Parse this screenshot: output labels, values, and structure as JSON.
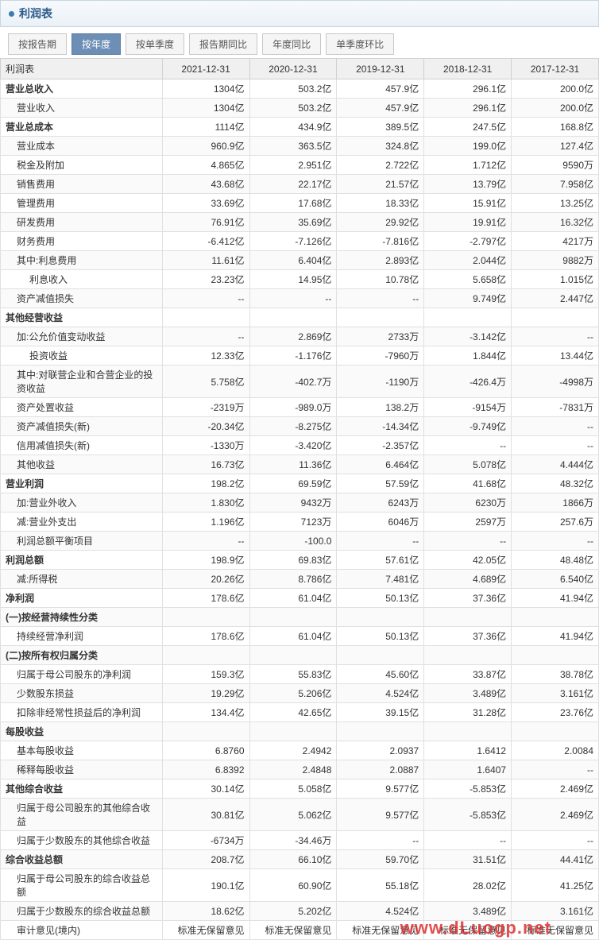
{
  "title": "利润表",
  "tabs": [
    "按报告期",
    "按年度",
    "按单季度",
    "报告期同比",
    "年度同比",
    "单季度环比"
  ],
  "active_tab": 1,
  "header": [
    "利润表",
    "2021-12-31",
    "2020-12-31",
    "2019-12-31",
    "2018-12-31",
    "2017-12-31"
  ],
  "watermark": "www.dLuogp.net",
  "colors": {
    "title_bg1": "#f7fafd",
    "title_bg2": "#eaf1f6",
    "title_border": "#c8d6e2",
    "bullet": "#3a7ab5",
    "title_text": "#2a5a8a",
    "th_bg": "#f0f0f0"
  },
  "rows": [
    {
      "l": 0,
      "b": 1,
      "c": [
        "营业总收入",
        "1304亿",
        "503.2亿",
        "457.9亿",
        "296.1亿",
        "200.0亿"
      ]
    },
    {
      "l": 1,
      "c": [
        "营业收入",
        "1304亿",
        "503.2亿",
        "457.9亿",
        "296.1亿",
        "200.0亿"
      ]
    },
    {
      "l": 0,
      "b": 1,
      "c": [
        "营业总成本",
        "1114亿",
        "434.9亿",
        "389.5亿",
        "247.5亿",
        "168.8亿"
      ]
    },
    {
      "l": 1,
      "c": [
        "营业成本",
        "960.9亿",
        "363.5亿",
        "324.8亿",
        "199.0亿",
        "127.4亿"
      ]
    },
    {
      "l": 1,
      "c": [
        "税金及附加",
        "4.865亿",
        "2.951亿",
        "2.722亿",
        "1.712亿",
        "9590万"
      ]
    },
    {
      "l": 1,
      "c": [
        "销售费用",
        "43.68亿",
        "22.17亿",
        "21.57亿",
        "13.79亿",
        "7.958亿"
      ]
    },
    {
      "l": 1,
      "c": [
        "管理费用",
        "33.69亿",
        "17.68亿",
        "18.33亿",
        "15.91亿",
        "13.25亿"
      ]
    },
    {
      "l": 1,
      "c": [
        "研发费用",
        "76.91亿",
        "35.69亿",
        "29.92亿",
        "19.91亿",
        "16.32亿"
      ]
    },
    {
      "l": 1,
      "c": [
        "财务费用",
        "-6.412亿",
        "-7.126亿",
        "-7.816亿",
        "-2.797亿",
        "4217万"
      ]
    },
    {
      "l": 1,
      "c": [
        "其中:利息费用",
        "11.61亿",
        "6.404亿",
        "2.893亿",
        "2.044亿",
        "9882万"
      ]
    },
    {
      "l": 2,
      "c": [
        "利息收入",
        "23.23亿",
        "14.95亿",
        "10.78亿",
        "5.658亿",
        "1.015亿"
      ]
    },
    {
      "l": 1,
      "c": [
        "资产减值损失",
        "--",
        "--",
        "--",
        "9.749亿",
        "2.447亿"
      ]
    },
    {
      "l": 0,
      "b": 1,
      "c": [
        "其他经营收益",
        "",
        "",
        "",
        "",
        ""
      ]
    },
    {
      "l": 1,
      "c": [
        "加:公允价值变动收益",
        "--",
        "2.869亿",
        "2733万",
        "-3.142亿",
        "--"
      ]
    },
    {
      "l": 2,
      "c": [
        "投资收益",
        "12.33亿",
        "-1.176亿",
        "-7960万",
        "1.844亿",
        "13.44亿"
      ]
    },
    {
      "l": 1,
      "c": [
        "其中:对联营企业和合营企业的投资收益",
        "5.758亿",
        "-402.7万",
        "-1190万",
        "-426.4万",
        "-4998万"
      ]
    },
    {
      "l": 1,
      "c": [
        "资产处置收益",
        "-2319万",
        "-989.0万",
        "138.2万",
        "-9154万",
        "-7831万"
      ]
    },
    {
      "l": 1,
      "c": [
        "资产减值损失(新)",
        "-20.34亿",
        "-8.275亿",
        "-14.34亿",
        "-9.749亿",
        "--"
      ]
    },
    {
      "l": 1,
      "c": [
        "信用减值损失(新)",
        "-1330万",
        "-3.420亿",
        "-2.357亿",
        "--",
        "--"
      ]
    },
    {
      "l": 1,
      "c": [
        "其他收益",
        "16.73亿",
        "11.36亿",
        "6.464亿",
        "5.078亿",
        "4.444亿"
      ]
    },
    {
      "l": 0,
      "b": 1,
      "c": [
        "营业利润",
        "198.2亿",
        "69.59亿",
        "57.59亿",
        "41.68亿",
        "48.32亿"
      ]
    },
    {
      "l": 1,
      "c": [
        "加:营业外收入",
        "1.830亿",
        "9432万",
        "6243万",
        "6230万",
        "1866万"
      ]
    },
    {
      "l": 1,
      "c": [
        "减:营业外支出",
        "1.196亿",
        "7123万",
        "6046万",
        "2597万",
        "257.6万"
      ]
    },
    {
      "l": 1,
      "c": [
        "利润总额平衡项目",
        "--",
        "-100.0",
        "--",
        "--",
        "--"
      ]
    },
    {
      "l": 0,
      "b": 1,
      "c": [
        "利润总额",
        "198.9亿",
        "69.83亿",
        "57.61亿",
        "42.05亿",
        "48.48亿"
      ]
    },
    {
      "l": 1,
      "c": [
        "减:所得税",
        "20.26亿",
        "8.786亿",
        "7.481亿",
        "4.689亿",
        "6.540亿"
      ]
    },
    {
      "l": 0,
      "b": 1,
      "c": [
        "净利润",
        "178.6亿",
        "61.04亿",
        "50.13亿",
        "37.36亿",
        "41.94亿"
      ]
    },
    {
      "l": 0,
      "b": 1,
      "c": [
        "(一)按经营持续性分类",
        "",
        "",
        "",
        "",
        ""
      ]
    },
    {
      "l": 1,
      "c": [
        "持续经营净利润",
        "178.6亿",
        "61.04亿",
        "50.13亿",
        "37.36亿",
        "41.94亿"
      ]
    },
    {
      "l": 0,
      "b": 1,
      "c": [
        "(二)按所有权归属分类",
        "",
        "",
        "",
        "",
        ""
      ]
    },
    {
      "l": 1,
      "c": [
        "归属于母公司股东的净利润",
        "159.3亿",
        "55.83亿",
        "45.60亿",
        "33.87亿",
        "38.78亿"
      ]
    },
    {
      "l": 1,
      "c": [
        "少数股东损益",
        "19.29亿",
        "5.206亿",
        "4.524亿",
        "3.489亿",
        "3.161亿"
      ]
    },
    {
      "l": 1,
      "c": [
        "扣除非经常性损益后的净利润",
        "134.4亿",
        "42.65亿",
        "39.15亿",
        "31.28亿",
        "23.76亿"
      ]
    },
    {
      "l": 0,
      "b": 1,
      "c": [
        "每股收益",
        "",
        "",
        "",
        "",
        ""
      ]
    },
    {
      "l": 1,
      "c": [
        "基本每股收益",
        "6.8760",
        "2.4942",
        "2.0937",
        "1.6412",
        "2.0084"
      ]
    },
    {
      "l": 1,
      "c": [
        "稀释每股收益",
        "6.8392",
        "2.4848",
        "2.0887",
        "1.6407",
        "--"
      ]
    },
    {
      "l": 0,
      "b": 1,
      "c": [
        "其他综合收益",
        "30.14亿",
        "5.058亿",
        "9.577亿",
        "-5.853亿",
        "2.469亿"
      ]
    },
    {
      "l": 1,
      "c": [
        "归属于母公司股东的其他综合收益",
        "30.81亿",
        "5.062亿",
        "9.577亿",
        "-5.853亿",
        "2.469亿"
      ]
    },
    {
      "l": 1,
      "c": [
        "归属于少数股东的其他综合收益",
        "-6734万",
        "-34.46万",
        "--",
        "--",
        "--"
      ]
    },
    {
      "l": 0,
      "b": 1,
      "c": [
        "综合收益总额",
        "208.7亿",
        "66.10亿",
        "59.70亿",
        "31.51亿",
        "44.41亿"
      ]
    },
    {
      "l": 1,
      "c": [
        "归属于母公司股东的综合收益总额",
        "190.1亿",
        "60.90亿",
        "55.18亿",
        "28.02亿",
        "41.25亿"
      ]
    },
    {
      "l": 1,
      "c": [
        "归属于少数股东的综合收益总额",
        "18.62亿",
        "5.202亿",
        "4.524亿",
        "3.489亿",
        "3.161亿"
      ]
    },
    {
      "l": 1,
      "c": [
        "审计意见(境内)",
        "标准无保留意见",
        "标准无保留意见",
        "标准无保留意见",
        "标准无保留意见",
        "标准无保留意见"
      ]
    }
  ]
}
